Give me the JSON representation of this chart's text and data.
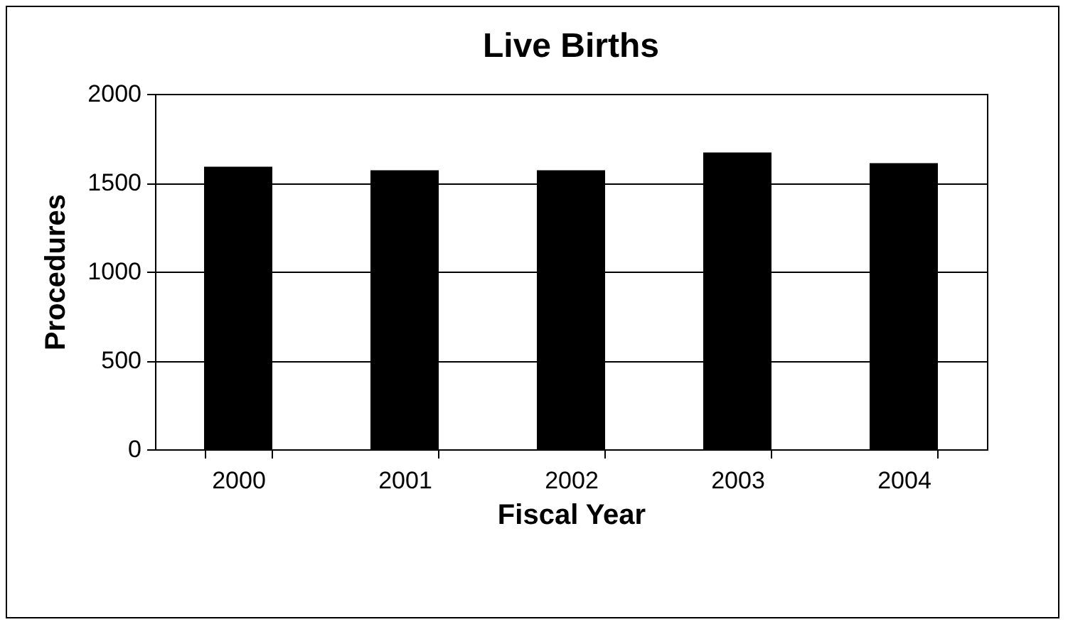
{
  "chart_data": {
    "type": "bar",
    "title": "Live Births",
    "xlabel": "Fiscal Year",
    "ylabel": "Procedures",
    "categories": [
      "2000",
      "2001",
      "2002",
      "2003",
      "2004"
    ],
    "values": [
      1590,
      1570,
      1570,
      1670,
      1610
    ],
    "color": "#000000",
    "ylim": [
      0,
      2000
    ],
    "yticks": [
      0,
      500,
      1000,
      1500,
      2000
    ],
    "grid": "y"
  }
}
